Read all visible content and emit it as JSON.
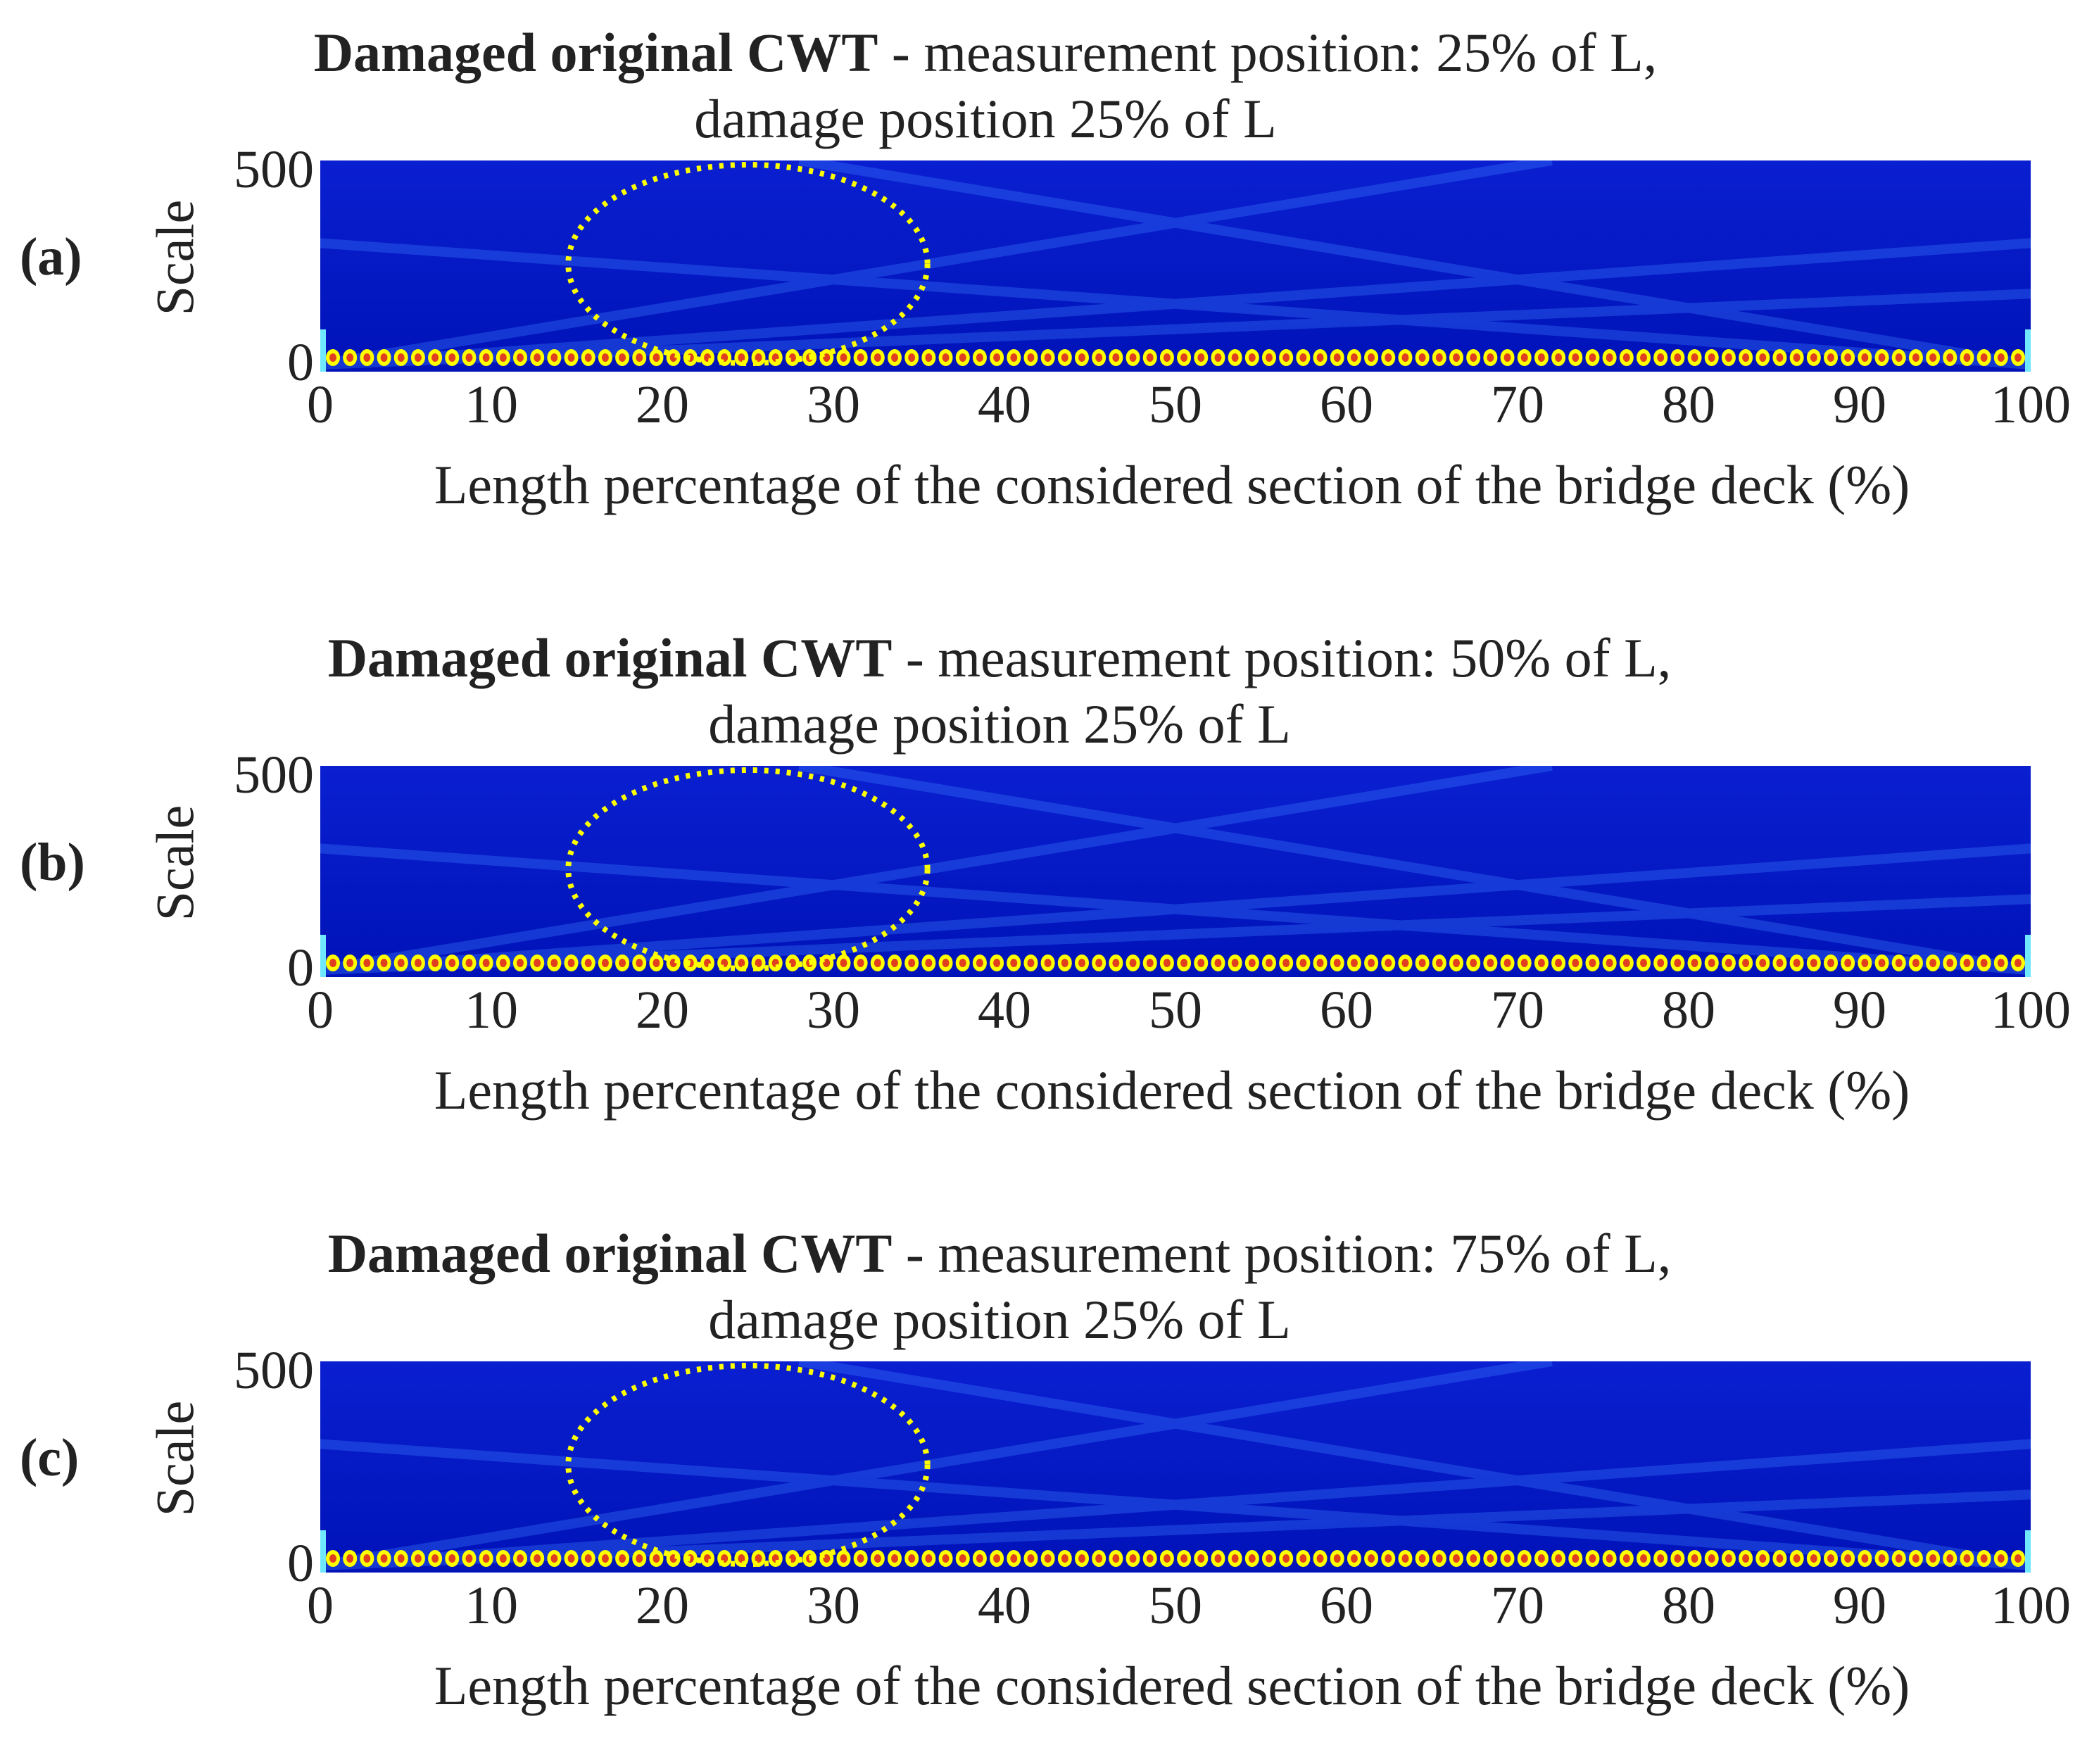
{
  "chart_data": [
    {
      "type": "heatmap",
      "panel_label": "(a)",
      "title_bold": "Damaged original CWT",
      "title_rest": " - measurement position: 25% of L,",
      "title_line2": "damage position 25% of L",
      "xlabel": "Length percentage of the considered section of the bridge deck (%)",
      "ylabel": "Scale",
      "xlim": [
        0,
        100
      ],
      "ylim": [
        0,
        500
      ],
      "x_ticks": [
        "0",
        "10",
        "20",
        "30",
        "40",
        "50",
        "60",
        "70",
        "80",
        "90",
        "100"
      ],
      "y_ticks": [
        "0",
        "500"
      ],
      "annotation": {
        "shape": "ellipse",
        "style": "dotted",
        "color": "#ffff00",
        "x_range": [
          14.5,
          35.5
        ],
        "y_range": [
          20,
          490
        ]
      }
    },
    {
      "type": "heatmap",
      "panel_label": "(b)",
      "title_bold": "Damaged original CWT",
      "title_rest": " - measurement position: 50% of L,",
      "title_line2": "damage position 25% of L",
      "xlabel": "Length percentage of the considered section of the bridge deck (%)",
      "ylabel": "Scale",
      "xlim": [
        0,
        100
      ],
      "ylim": [
        0,
        500
      ],
      "x_ticks": [
        "0",
        "10",
        "20",
        "30",
        "40",
        "50",
        "60",
        "70",
        "80",
        "90",
        "100"
      ],
      "y_ticks": [
        "0",
        "500"
      ],
      "annotation": {
        "shape": "ellipse",
        "style": "dotted",
        "color": "#ffff00",
        "x_range": [
          14.5,
          35.5
        ],
        "y_range": [
          20,
          490
        ]
      }
    },
    {
      "type": "heatmap",
      "panel_label": "(c)",
      "title_bold": "Damaged original CWT",
      "title_rest": " - measurement position: 75% of L,",
      "title_line2": "damage position 25% of L",
      "xlabel": "Length percentage of the considered section of the bridge deck (%)",
      "ylabel": "Scale",
      "xlim": [
        0,
        100
      ],
      "ylim": [
        0,
        500
      ],
      "x_ticks": [
        "0",
        "10",
        "20",
        "30",
        "40",
        "50",
        "60",
        "70",
        "80",
        "90",
        "100"
      ],
      "y_ticks": [
        "0",
        "500"
      ],
      "annotation": {
        "shape": "ellipse",
        "style": "dotted",
        "color": "#ffff00",
        "x_range": [
          14.5,
          35.5
        ],
        "y_range": [
          20,
          490
        ]
      }
    }
  ],
  "colors": {
    "background_blue": "#0a1fd0",
    "deep_blue": "#0013b8",
    "light_blue": "#3a7bff",
    "cyan": "#6fe8ff",
    "yellow": "#ffff00",
    "red": "#e04020"
  }
}
